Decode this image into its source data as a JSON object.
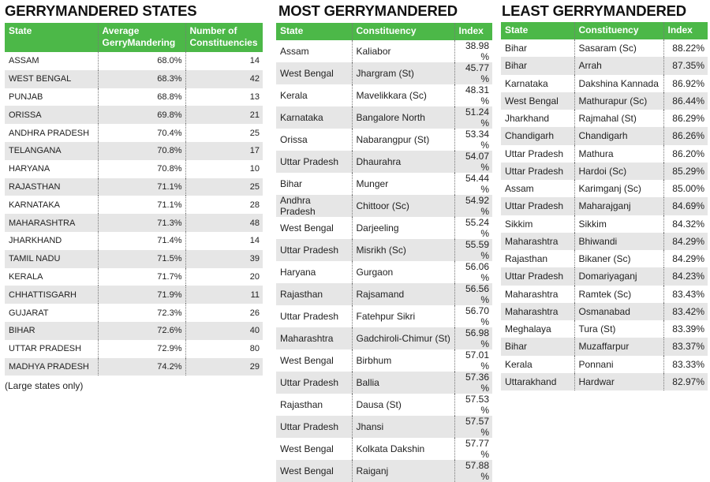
{
  "states": {
    "title": "GERRYMANDERED STATES",
    "headers": [
      "State",
      "Average GerryMandering",
      "Number of Constituencies"
    ],
    "rows": [
      [
        "ASSAM",
        "68.0%",
        "14"
      ],
      [
        "WEST BENGAL",
        "68.3%",
        "42"
      ],
      [
        "PUNJAB",
        "68.8%",
        "13"
      ],
      [
        "ORISSA",
        "69.8%",
        "21"
      ],
      [
        "ANDHRA PRADESH",
        "70.4%",
        "25"
      ],
      [
        "TELANGANA",
        "70.8%",
        "17"
      ],
      [
        "HARYANA",
        "70.8%",
        "10"
      ],
      [
        "RAJASTHAN",
        "71.1%",
        "25"
      ],
      [
        "KARNATAKA",
        "71.1%",
        "28"
      ],
      [
        "MAHARASHTRA",
        "71.3%",
        "48"
      ],
      [
        "JHARKHAND",
        "71.4%",
        "14"
      ],
      [
        "TAMIL NADU",
        "71.5%",
        "39"
      ],
      [
        "KERALA",
        "71.7%",
        "20"
      ],
      [
        "CHHATTISGARH",
        "71.9%",
        "11"
      ],
      [
        "GUJARAT",
        "72.3%",
        "26"
      ],
      [
        "BIHAR",
        "72.6%",
        "40"
      ],
      [
        "UTTAR PRADESH",
        "72.9%",
        "80"
      ],
      [
        "MADHYA PRADESH",
        "74.2%",
        "29"
      ]
    ],
    "note": "(Large states only)"
  },
  "most": {
    "title": "MOST GERRYMANDERED",
    "headers": [
      "State",
      "Constituency",
      "Index"
    ],
    "rows": [
      [
        "Assam",
        "Kaliabor",
        "38.98%"
      ],
      [
        "West Bengal",
        "Jhargram (St)",
        "45.77%"
      ],
      [
        "Kerala",
        "Mavelikkara (Sc)",
        "48.31%"
      ],
      [
        "Karnataka",
        "Bangalore North",
        "51.24%"
      ],
      [
        "Orissa",
        "Nabarangpur (St)",
        "53.34%"
      ],
      [
        "Uttar Pradesh",
        "Dhaurahra",
        "54.07%"
      ],
      [
        "Bihar",
        "Munger",
        "54.44%"
      ],
      [
        "Andhra Pradesh",
        "Chittoor (Sc)",
        "54.92%"
      ],
      [
        "West Bengal",
        "Darjeeling",
        "55.24%"
      ],
      [
        "Uttar Pradesh",
        "Misrikh (Sc)",
        "55.59%"
      ],
      [
        "Haryana",
        "Gurgaon",
        "56.06%"
      ],
      [
        "Rajasthan",
        "Rajsamand",
        "56.56%"
      ],
      [
        "Uttar Pradesh",
        "Fatehpur Sikri",
        "56.70%"
      ],
      [
        "Maharashtra",
        "Gadchiroli-Chimur (St)",
        "56.98%"
      ],
      [
        "West Bengal",
        "Birbhum",
        "57.01%"
      ],
      [
        "Uttar Pradesh",
        "Ballia",
        "57.36%"
      ],
      [
        "Rajasthan",
        "Dausa (St)",
        "57.53%"
      ],
      [
        "Uttar Pradesh",
        "Jhansi",
        "57.57%"
      ],
      [
        "West Bengal",
        "Kolkata Dakshin",
        "57.77%"
      ],
      [
        "West Bengal",
        "Raiganj",
        "57.88%"
      ]
    ]
  },
  "least": {
    "title": "LEAST GERRYMANDERED",
    "headers": [
      "State",
      "Constituency",
      "Index"
    ],
    "rows": [
      [
        "Bihar",
        "Sasaram (Sc)",
        "88.22%"
      ],
      [
        "Bihar",
        "Arrah",
        "87.35%"
      ],
      [
        "Karnataka",
        "Dakshina Kannada",
        "86.92%"
      ],
      [
        "West Bengal",
        "Mathurapur (Sc)",
        "86.44%"
      ],
      [
        "Jharkhand",
        "Rajmahal (St)",
        "86.29%"
      ],
      [
        "Chandigarh",
        "Chandigarh",
        "86.26%"
      ],
      [
        "Uttar Pradesh",
        "Mathura",
        "86.20%"
      ],
      [
        "Uttar Pradesh",
        "Hardoi (Sc)",
        "85.29%"
      ],
      [
        "Assam",
        "Karimganj (Sc)",
        "85.00%"
      ],
      [
        "Uttar Pradesh",
        "Maharajganj",
        "84.69%"
      ],
      [
        "Sikkim",
        "Sikkim",
        "84.32%"
      ],
      [
        "Maharashtra",
        "Bhiwandi",
        "84.29%"
      ],
      [
        "Rajasthan",
        "Bikaner (Sc)",
        "84.29%"
      ],
      [
        "Uttar Pradesh",
        "Domariyaganj",
        "84.23%"
      ],
      [
        "Maharashtra",
        "Ramtek (Sc)",
        "83.43%"
      ],
      [
        "Maharashtra",
        "Osmanabad",
        "83.42%"
      ],
      [
        "Meghalaya",
        "Tura (St)",
        "83.39%"
      ],
      [
        "Bihar",
        "Muzaffarpur",
        "83.37%"
      ],
      [
        "Kerala",
        "Ponnani",
        "83.33%"
      ],
      [
        "Uttarakhand",
        "Hardwar",
        "82.97%"
      ]
    ]
  },
  "colors": {
    "header_green": "#4cb848",
    "stripe_gray": "#e6e6e6"
  }
}
